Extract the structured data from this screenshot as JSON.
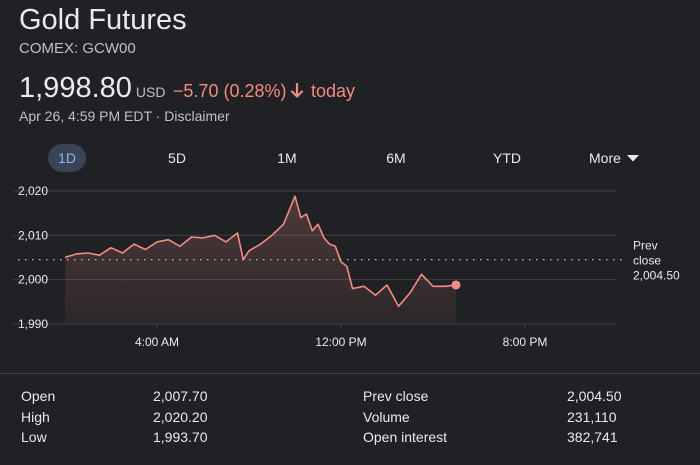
{
  "header": {
    "title": "Gold Futures",
    "subtitle": "COMEX: GCW00",
    "price": "1,998.80",
    "currency": "USD",
    "change": "−5.70 (0.28%)",
    "change_direction_icon": "arrow-down-icon",
    "change_period": "today",
    "timestamp": "Apr 26, 4:59 PM EDT",
    "separator": " · ",
    "disclaimer": "Disclaimer"
  },
  "ranges": {
    "items": [
      "1D",
      "5D",
      "1M",
      "6M",
      "YTD"
    ],
    "selected": "1D",
    "more_label": "More",
    "more_icon": "caret-down-icon"
  },
  "colors": {
    "background": "#202124",
    "line": "#f28b82",
    "negative_text": "#f28b82",
    "selected_tab_bg": "#394457",
    "selected_tab_text": "#8ab4f8",
    "grid": "#3c4043"
  },
  "chart_data": {
    "type": "area",
    "x_axis_labels": [
      "4:00 AM",
      "12:00 PM",
      "8:00 PM"
    ],
    "x_label_hours": [
      4,
      12,
      20
    ],
    "x_range_hours": [
      0,
      24
    ],
    "y_ticks": [
      1990,
      2000,
      2010,
      2020
    ],
    "y_tick_labels": [
      "1,990",
      "2,000",
      "2,010",
      "2,020"
    ],
    "ylim": [
      1990,
      2022
    ],
    "grid": true,
    "prev_close": {
      "value": 2004.5,
      "label": [
        "Prev",
        "close",
        "2,004.50"
      ]
    },
    "series": [
      {
        "x_hours": [
          0,
          0.5,
          1,
          1.5,
          2,
          2.5,
          3,
          3.5,
          4,
          4.5,
          5,
          5.5,
          6,
          6.5,
          7,
          7.5,
          7.75,
          8,
          8.5,
          9,
          9.5,
          10,
          10.25,
          10.5,
          10.75,
          11,
          11.25,
          11.5,
          11.75,
          12,
          12.25,
          12.5,
          13,
          13.5,
          14,
          14.5,
          15,
          15.5,
          16,
          16.5,
          17
        ],
        "values": [
          2005.0,
          2005.8,
          2006.0,
          2005.5,
          2007.2,
          2006.0,
          2008.0,
          2006.8,
          2008.5,
          2009.0,
          2007.5,
          2009.6,
          2009.4,
          2010.0,
          2008.5,
          2010.5,
          2004.5,
          2006.5,
          2008.0,
          2010.0,
          2012.5,
          2018.8,
          2014.0,
          2014.8,
          2011.0,
          2012.5,
          2009.5,
          2008.0,
          2007.5,
          2004.0,
          2003.0,
          1998.0,
          1998.5,
          1996.5,
          1998.8,
          1994.0,
          1997.0,
          2001.2,
          1998.5,
          1998.5,
          1998.8
        ]
      }
    ]
  },
  "stats": {
    "left": [
      {
        "label": "Open",
        "value": "2,007.70"
      },
      {
        "label": "High",
        "value": "2,020.20"
      },
      {
        "label": "Low",
        "value": "1,993.70"
      }
    ],
    "right": [
      {
        "label": "Prev close",
        "value": "2,004.50"
      },
      {
        "label": "Volume",
        "value": "231,110"
      },
      {
        "label": "Open interest",
        "value": "382,741"
      }
    ]
  }
}
